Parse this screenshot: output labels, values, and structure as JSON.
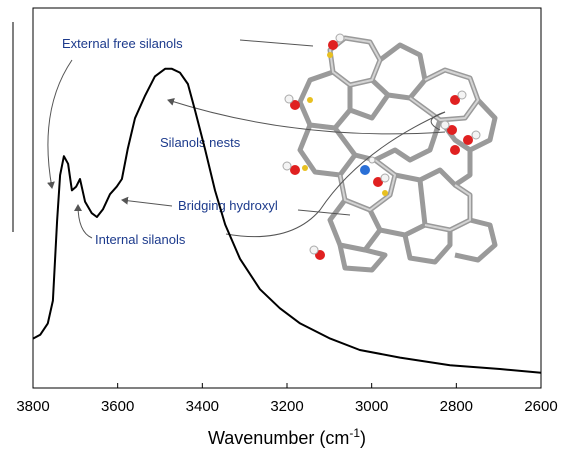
{
  "chart_data": {
    "type": "line",
    "xlabel": [
      "Wavenumber (cm",
      "-1",
      ")"
    ],
    "annotations": [
      "External free silanols",
      "Silanols nests",
      "Bridging hydroxyl",
      "Internal silanols"
    ],
    "xlim": [
      3800,
      2600
    ],
    "xticks": [
      3800,
      3600,
      3400,
      3200,
      3000,
      2800,
      2600
    ],
    "ylim": [
      0,
      1
    ],
    "series": [
      {
        "color": "#000000",
        "x": [
          3800,
          3783,
          3765,
          3753,
          3743,
          3736,
          3727,
          3717,
          3708,
          3698,
          3689,
          3677,
          3661,
          3649,
          3635,
          3618,
          3602,
          3590,
          3576,
          3559,
          3535,
          3512,
          3488,
          3472,
          3453,
          3434,
          3417,
          3394,
          3370,
          3346,
          3311,
          3264,
          3217,
          3169,
          3098,
          3028,
          2933,
          2815,
          2697,
          2600
        ],
        "values": [
          0.13,
          0.14,
          0.17,
          0.23,
          0.44,
          0.56,
          0.61,
          0.59,
          0.52,
          0.53,
          0.55,
          0.49,
          0.46,
          0.45,
          0.47,
          0.51,
          0.53,
          0.55,
          0.63,
          0.71,
          0.77,
          0.82,
          0.84,
          0.84,
          0.83,
          0.8,
          0.73,
          0.63,
          0.52,
          0.43,
          0.34,
          0.26,
          0.21,
          0.17,
          0.13,
          0.1,
          0.08,
          0.06,
          0.05,
          0.04
        ]
      }
    ]
  }
}
